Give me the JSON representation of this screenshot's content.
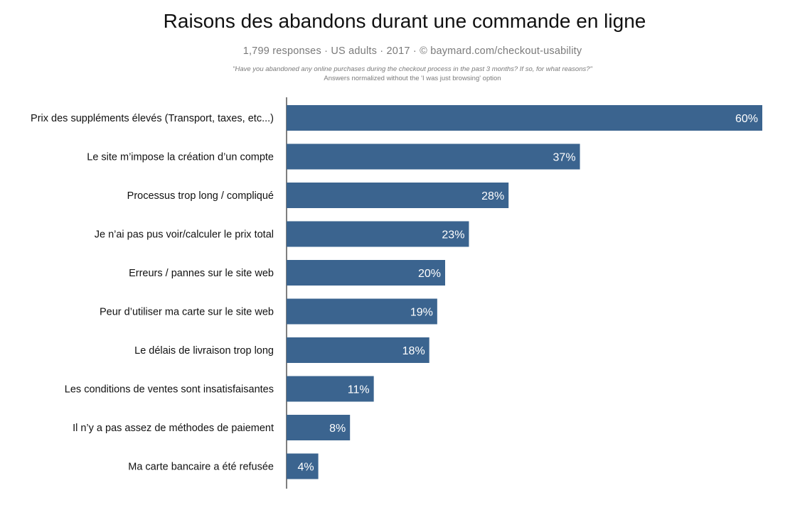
{
  "chart_data": {
    "type": "bar",
    "orientation": "horizontal",
    "title": "Raisons des abandons durant une commande en ligne",
    "subtitle": "1,799 responses  ·  US adults  ·  2017  ·  ©  baymard.com/checkout-usability",
    "question": "\"Have you abandoned any online purchases during the checkout process in the past 3 months? If so, for what reasons?\"",
    "note": "Answers normalized without the 'I was just browsing' option",
    "categories": [
      "Prix des suppléments élevés (Transport, taxes, etc...)",
      "Le site m’impose la création d’un compte",
      "Processus trop long / compliqué",
      "Je n’ai pas pus voir/calculer le prix total",
      "Erreurs / pannes sur le site web",
      "Peur d’utiliser ma carte sur le site web",
      "Le délais de livraison trop long",
      "Les conditions de ventes sont insatisfaisantes",
      "Il n’y a pas assez de méthodes de paiement",
      "Ma carte bancaire a été refusée"
    ],
    "values": [
      60,
      37,
      28,
      23,
      20,
      19,
      18,
      11,
      8,
      4
    ],
    "value_labels": [
      "60%",
      "37%",
      "28%",
      "23%",
      "20%",
      "19%",
      "18%",
      "11%",
      "8%",
      "4%"
    ],
    "xlim": [
      0,
      60
    ],
    "unit": "%",
    "grid": false,
    "legend": "none",
    "colors": {
      "bar": "#3b648f",
      "value_label": "#ffffff",
      "category_label": "#111111",
      "axis": "#555555"
    }
  }
}
